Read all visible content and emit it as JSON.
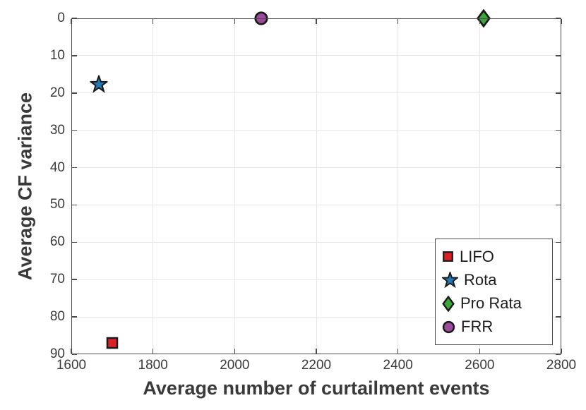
{
  "chart_data": {
    "type": "scatter",
    "title": "",
    "xlabel": "Average number of curtailment events",
    "ylabel": "Average CF variance",
    "xlim": [
      1600,
      2800
    ],
    "ylim": [
      0,
      90
    ],
    "y_direction": "reversed",
    "grid": true,
    "xticks": [
      1600,
      1800,
      2000,
      2200,
      2400,
      2600,
      2800
    ],
    "yticks": [
      0,
      10,
      20,
      30,
      40,
      50,
      60,
      70,
      80,
      90
    ],
    "legend_position": "bottom-right",
    "marker_edge_color": "#1a1a1a",
    "series": [
      {
        "name": "LIFO",
        "marker": "square",
        "color": "#db1f26",
        "points": [
          {
            "x": 1700,
            "y": 87
          }
        ]
      },
      {
        "name": "Rota",
        "marker": "star",
        "color": "#2478b4",
        "points": [
          {
            "x": 1668,
            "y": 17.5
          }
        ]
      },
      {
        "name": "Pro Rata",
        "marker": "diamond",
        "color": "#3ea53c",
        "points": [
          {
            "x": 2610,
            "y": 0
          }
        ]
      },
      {
        "name": "FRR",
        "marker": "circle",
        "color": "#9d4a9d",
        "points": [
          {
            "x": 2065,
            "y": 0
          }
        ]
      }
    ]
  },
  "colors": {
    "background": "#ffffff",
    "axis_box": "#4a4a4a",
    "grid": "#e7e7e7",
    "tick_text": "#3a3a3a",
    "axis_label_text": "#3a3a3a",
    "legend_text": "#1c1c1c",
    "legend_border": "#4a4a4a"
  }
}
